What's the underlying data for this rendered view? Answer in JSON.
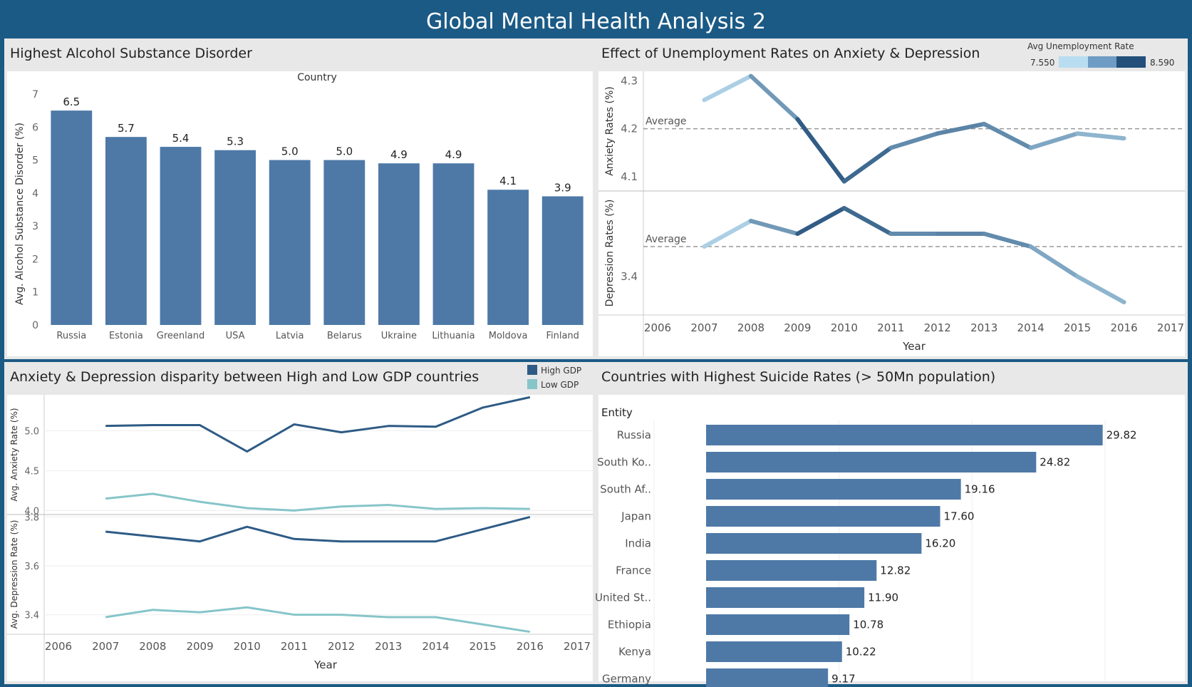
{
  "dashboard": {
    "title": "Global Mental Health Analysis 2"
  },
  "colors": {
    "bar": "#4e79a7",
    "high_gdp": "#2e5b85",
    "low_gdp": "#86c5c9",
    "unemp_low": "#b9ddf0",
    "unemp_mid": "#6f9cc4",
    "unemp_high": "#234f7a",
    "avg_line": "#999999"
  },
  "chart_data": [
    {
      "id": "alcohol",
      "type": "bar",
      "title": "Highest Alcohol Substance Disorder",
      "xlabel": "Country",
      "ylabel": "Avg. Alcohol Substance Disorder (%)",
      "categories": [
        "Russia",
        "Estonia",
        "Greenland",
        "USA",
        "Latvia",
        "Belarus",
        "Ukraine",
        "Lithuania",
        "Moldova",
        "Finland"
      ],
      "values": [
        6.5,
        5.7,
        5.4,
        5.3,
        5.0,
        5.0,
        4.9,
        4.9,
        4.1,
        3.9
      ],
      "data_labels": [
        "6.5",
        "5.7",
        "5.4",
        "5.3",
        "5.0",
        "5.0",
        "4.9",
        "4.9",
        "4.1",
        "3.9"
      ],
      "ylim": [
        0,
        7
      ],
      "yticks": [
        "0",
        "1",
        "2",
        "3",
        "4",
        "5",
        "6",
        "7"
      ]
    },
    {
      "id": "unemployment",
      "type": "line",
      "title": "Effect of Unemployment Rates on Anxiety & Depression",
      "xlabel": "Year",
      "x": [
        2007,
        2008,
        2009,
        2010,
        2011,
        2012,
        2013,
        2014,
        2015,
        2016
      ],
      "xticks": [
        "2006",
        "2007",
        "2008",
        "2009",
        "2010",
        "2011",
        "2012",
        "2013",
        "2014",
        "2015",
        "2016",
        "2017"
      ],
      "xlim": [
        2006,
        2017
      ],
      "color_legend": {
        "title": "Avg Unemployment Rate",
        "min": "7.550",
        "max": "8.590"
      },
      "unemployment": [
        7.6,
        7.7,
        8.4,
        8.59,
        8.2,
        8.1,
        8.3,
        8.0,
        7.9,
        7.8
      ],
      "average_label": "Average",
      "panels": [
        {
          "ylabel": "Anxiety Rates (%)",
          "values": [
            4.26,
            4.31,
            4.22,
            4.09,
            4.16,
            4.19,
            4.21,
            4.16,
            4.19,
            4.18
          ],
          "average": 4.2,
          "ylim": [
            4.07,
            4.32
          ],
          "yticks": [
            "4.1",
            "4.2",
            "4.3"
          ]
        },
        {
          "ylabel": "Depression Rates (%)",
          "values": [
            3.47,
            3.53,
            3.5,
            3.56,
            3.5,
            3.5,
            3.5,
            3.47,
            3.4,
            3.34
          ],
          "average": 3.47,
          "ylim": [
            3.31,
            3.6
          ],
          "yticks": [
            "3.4"
          ]
        }
      ]
    },
    {
      "id": "gdp",
      "type": "line",
      "title": "Anxiety & Depression disparity between High and Low GDP countries",
      "xlabel": "Year",
      "x": [
        2007,
        2008,
        2009,
        2010,
        2011,
        2012,
        2013,
        2014,
        2015,
        2016
      ],
      "xticks": [
        "2006",
        "2007",
        "2008",
        "2009",
        "2010",
        "2011",
        "2012",
        "2013",
        "2014",
        "2015",
        "2016",
        "2017"
      ],
      "xlim": [
        2006,
        2017
      ],
      "legend": [
        "High GDP",
        "Low GDP"
      ],
      "panels": [
        {
          "ylabel": "Avg. Anxiety Rate (%)",
          "ylim": [
            3.95,
            5.45
          ],
          "yticks": [
            "4.0",
            "4.5",
            "5.0"
          ],
          "series": [
            {
              "name": "High GDP",
              "values": [
                5.06,
                5.07,
                5.07,
                4.74,
                5.08,
                4.98,
                5.06,
                5.05,
                5.29,
                5.42
              ]
            },
            {
              "name": "Low GDP",
              "values": [
                4.15,
                4.21,
                4.11,
                4.03,
                4.0,
                4.05,
                4.07,
                4.02,
                4.03,
                4.02
              ]
            }
          ]
        },
        {
          "ylabel": "Avg. Depression Rate (%)",
          "ylim": [
            3.32,
            3.81
          ],
          "yticks": [
            "3.4",
            "3.6",
            "3.8"
          ],
          "series": [
            {
              "name": "High GDP",
              "values": [
                3.74,
                3.72,
                3.7,
                3.76,
                3.71,
                3.7,
                3.7,
                3.7,
                3.75,
                3.8
              ]
            },
            {
              "name": "Low GDP",
              "values": [
                3.39,
                3.42,
                3.41,
                3.43,
                3.4,
                3.4,
                3.39,
                3.39,
                3.36,
                3.33
              ]
            }
          ]
        }
      ]
    },
    {
      "id": "suicide",
      "type": "bar",
      "orientation": "horizontal",
      "title": "Countries with Highest Suicide Rates (> 50Mn population)",
      "ylabel": "Entity",
      "categories": [
        "Russia",
        "South Ko..",
        "South Af..",
        "Japan",
        "India",
        "France",
        "United St..",
        "Ethiopia",
        "Kenya",
        "Germany"
      ],
      "values": [
        29.82,
        24.82,
        19.16,
        17.6,
        16.2,
        12.82,
        11.9,
        10.78,
        10.22,
        9.17
      ],
      "data_labels": [
        "29.82",
        "24.82",
        "19.16",
        "17.60",
        "16.20",
        "12.82",
        "11.90",
        "10.78",
        "10.22",
        "9.17"
      ],
      "xlim": [
        0,
        36
      ]
    }
  ]
}
